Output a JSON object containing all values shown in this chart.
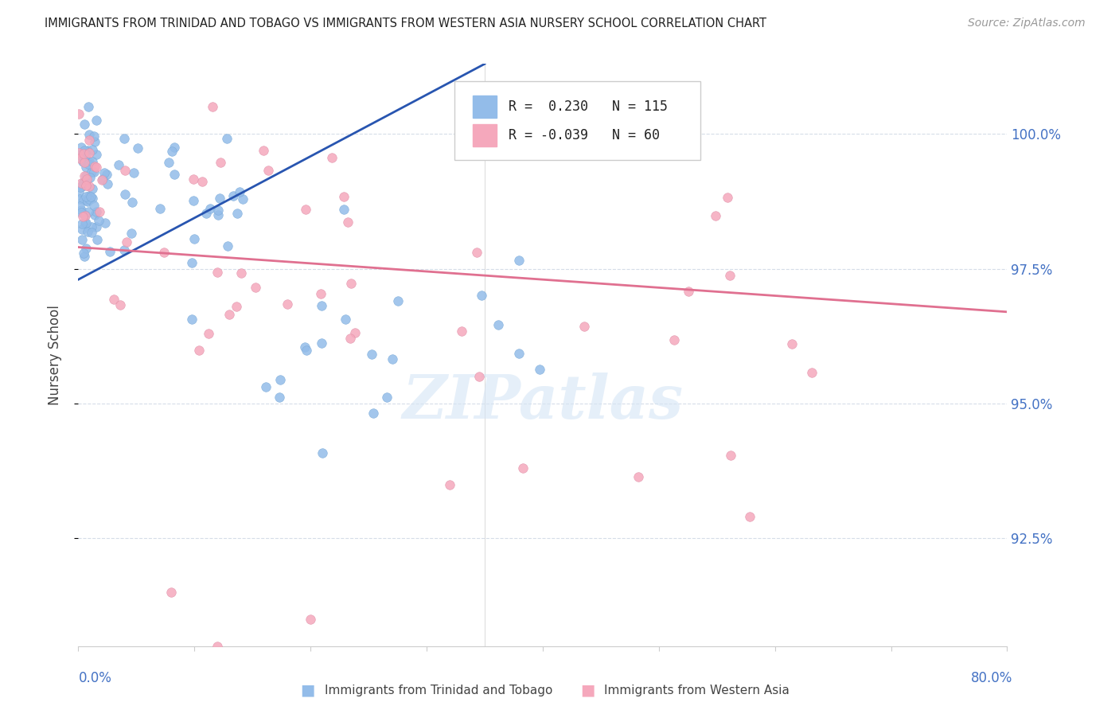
{
  "title": "IMMIGRANTS FROM TRINIDAD AND TOBAGO VS IMMIGRANTS FROM WESTERN ASIA NURSERY SCHOOL CORRELATION CHART",
  "source": "Source: ZipAtlas.com",
  "ylabel": "Nursery School",
  "y_ticks": [
    92.5,
    95.0,
    97.5,
    100.0
  ],
  "legend_blue_R": "0.230",
  "legend_blue_N": "115",
  "legend_pink_R": "-0.039",
  "legend_pink_N": "60",
  "blue_color": "#93bce9",
  "pink_color": "#f5a8bc",
  "blue_line_color": "#2855b0",
  "pink_line_color": "#e07090",
  "right_label_color": "#4472c4",
  "title_color": "#222222",
  "source_color": "#999999",
  "watermark_color": "#d5e5f5",
  "grid_color": "#d5dde8",
  "spine_color": "#cccccc",
  "x_min": 0,
  "x_max": 80,
  "y_min": 90.5,
  "y_max": 101.3,
  "blue_line_x": [
    0,
    35
  ],
  "blue_line_y": [
    97.3,
    101.3
  ],
  "pink_line_x": [
    0,
    80
  ],
  "pink_line_y": [
    97.9,
    96.7
  ]
}
